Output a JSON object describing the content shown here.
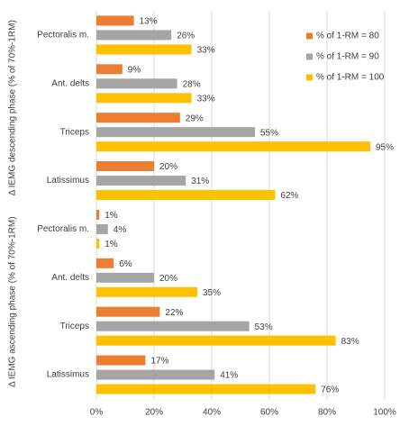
{
  "chart_data": {
    "type": "bar",
    "orientation": "horizontal",
    "y_group_labels": [
      "Δ IEMG descending phase (% of 70%-1RM)",
      "Δ IEMG ascending phase (% of 70%-1RM)"
    ],
    "categories": [
      "Pectoralis m.",
      "Ant. delts",
      "Triceps",
      "Latissimus",
      "Pectoralis m.",
      "Ant. delts",
      "Triceps",
      "Latissimus"
    ],
    "series": [
      {
        "name": "% of 1-RM =  80",
        "color": "#ED7D31",
        "values": [
          13,
          9,
          29,
          20,
          1,
          6,
          22,
          17
        ],
        "value_labels": [
          "13%",
          "9%",
          "29%",
          "20%",
          "1%",
          "6%",
          "22%",
          "17%"
        ]
      },
      {
        "name": "% of 1-RM =  90",
        "color": "#A5A5A5",
        "values": [
          26,
          28,
          55,
          31,
          4,
          20,
          53,
          41
        ],
        "value_labels": [
          "26%",
          "28%",
          "55%",
          "31%",
          "4%",
          "20%",
          "53%",
          "41%"
        ]
      },
      {
        "name": "% of 1-RM =  100",
        "color": "#FFC000",
        "values": [
          33,
          33,
          95,
          62,
          1,
          35,
          83,
          76
        ],
        "value_labels": [
          "33%",
          "33%",
          "95%",
          "62%",
          "1%",
          "35%",
          "83%",
          "76%"
        ]
      }
    ],
    "xlim": [
      0,
      100
    ],
    "xticks": [
      {
        "value": 0,
        "label": "0%"
      },
      {
        "value": 20,
        "label": "20%"
      },
      {
        "value": 40,
        "label": "40%"
      },
      {
        "value": 60,
        "label": "60%"
      },
      {
        "value": 80,
        "label": "80%"
      },
      {
        "value": 100,
        "label": "100%"
      }
    ],
    "grid": true,
    "legend": "top-right"
  }
}
